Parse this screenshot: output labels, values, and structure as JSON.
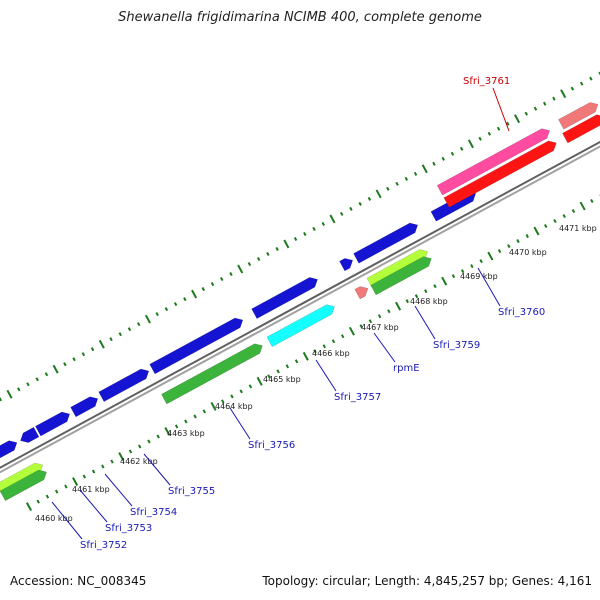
{
  "title": "Shewanella frigidimarina NCIMB 400, complete genome",
  "footer": {
    "accession": "Accession: NC_008345",
    "summary": "Topology: circular; Length: 4,845,257 bp; Genes: 4,161"
  },
  "colors": {
    "backbone": "#808080",
    "tick": "#1e7a1e",
    "gene_blue": "#1414d2",
    "gene_green": "#3cb43c",
    "gene_lightgreen": "#b4ff3c",
    "gene_cyan": "#14ffff",
    "gene_pink": "#ff4ba0",
    "gene_red": "#ff1414",
    "gene_lightpink": "#f07878",
    "label_blue": "#1a1ab8",
    "label_red": "#cc0000"
  },
  "scale_labels": [
    "4460 kbp",
    "4461 kbp",
    "4462 kbp",
    "4463 kbp",
    "4464 kbp",
    "4465 kbp",
    "4466 kbp",
    "4467 kbp",
    "4468 kbp",
    "4469 kbp",
    "4470 kbp",
    "4471 kbp"
  ],
  "gene_labels": [
    "Sfri_3752",
    "Sfri_3753",
    "Sfri_3754",
    "Sfri_3755",
    "Sfri_3756",
    "Sfri_3757",
    "rpmE",
    "Sfri_3759",
    "Sfri_3760",
    "Sfri_3761"
  ]
}
